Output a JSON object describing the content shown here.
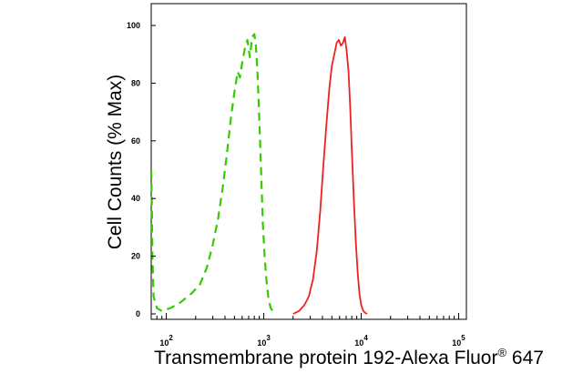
{
  "chart_data": {
    "type": "line",
    "title": "",
    "xlabel": "Transmembrane protein 192-Alexa Fluor",
    "xlabel_superscript": "®",
    "xlabel_suffix": " 647",
    "ylabel": "Cell Counts (% Max)",
    "x_scale": "log",
    "xlim": [
      70,
      120000
    ],
    "ylim": [
      0,
      100
    ],
    "y_ticks": [
      0,
      20,
      40,
      60,
      80,
      100
    ],
    "y_tick_labels": [
      "0",
      "20",
      "40",
      "60",
      "80",
      "100"
    ],
    "x_major_ticks": [
      100,
      1000,
      10000,
      100000
    ],
    "x_tick_labels": [
      {
        "base": "10",
        "exp": "2"
      },
      {
        "base": "10",
        "exp": "3"
      },
      {
        "base": "10",
        "exp": "4"
      },
      {
        "base": "10",
        "exp": "5"
      }
    ],
    "grid": false,
    "legend": "none",
    "series": [
      {
        "color": "#33cc00",
        "style": "dashed",
        "x": [
          70,
          71,
          72,
          74,
          80,
          90,
          110,
          140,
          180,
          220,
          260,
          300,
          340,
          380,
          420,
          460,
          500,
          540,
          570,
          600,
          640,
          680,
          720,
          760,
          800,
          830,
          860,
          890,
          920,
          950,
          980,
          1020,
          1070,
          1120,
          1180,
          1250,
          1330
        ],
        "y": [
          50,
          38,
          20,
          6,
          2,
          1,
          2,
          4,
          7,
          10,
          16,
          24,
          33,
          44,
          56,
          68,
          77,
          84,
          82,
          87,
          92,
          95,
          89,
          96,
          97,
          93,
          84,
          72,
          58,
          44,
          31,
          20,
          11,
          5,
          2,
          0.8,
          0
        ]
      },
      {
        "color": "#ee2222",
        "style": "solid",
        "x": [
          2000,
          2300,
          2600,
          2900,
          3200,
          3500,
          3800,
          4100,
          4400,
          4700,
          5000,
          5300,
          5600,
          5900,
          6200,
          6500,
          6800,
          7100,
          7400,
          7700,
          8000,
          8400,
          8800,
          9200,
          9600,
          10000,
          10500,
          11000,
          11500
        ],
        "y": [
          0,
          1,
          3,
          6,
          12,
          22,
          36,
          52,
          66,
          78,
          86,
          90,
          94,
          95,
          93,
          94,
          96,
          91,
          84,
          72,
          57,
          40,
          25,
          14,
          7,
          3,
          1,
          0.3,
          0
        ]
      }
    ]
  }
}
